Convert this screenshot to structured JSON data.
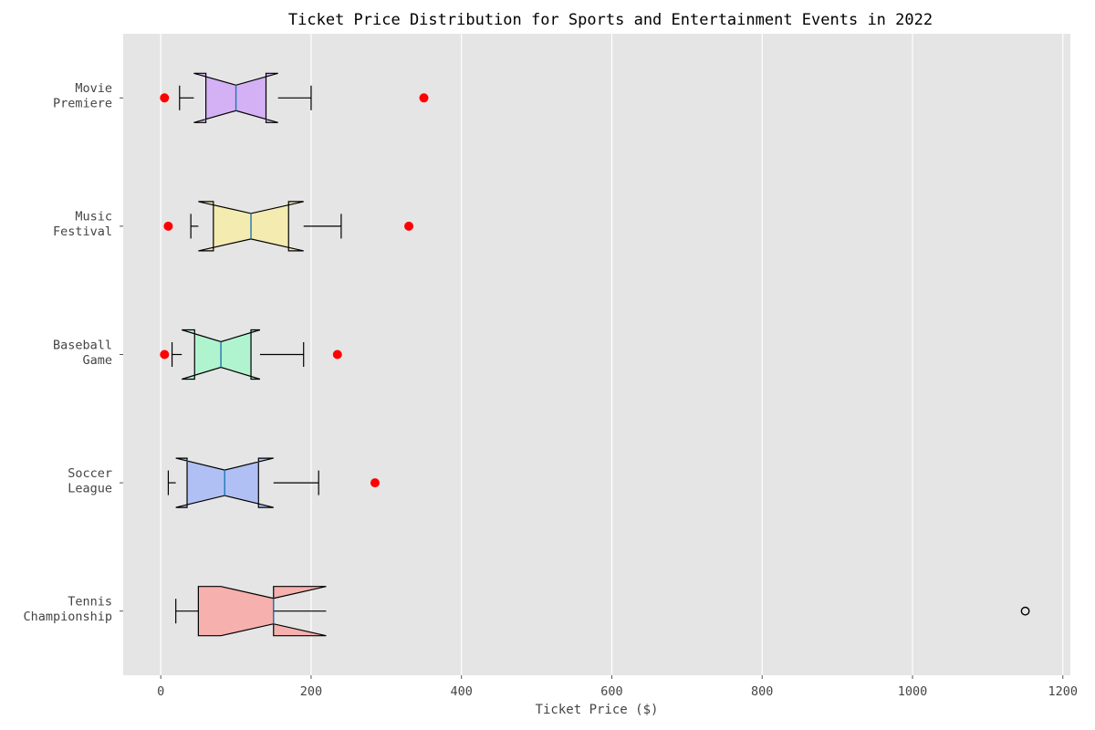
{
  "chart_data": {
    "type": "box",
    "orientation": "horizontal",
    "notched": true,
    "title": "Ticket Price Distribution for Sports and Entertainment Events in 2022",
    "xlabel": "Ticket Price ($)",
    "ylabel": "",
    "xlim": [
      -50,
      1210
    ],
    "xticks": [
      0,
      200,
      400,
      600,
      800,
      1000,
      1200
    ],
    "grid": true,
    "background": "#e5e5e5",
    "grid_color": "#ffffff",
    "median_color": "#1f77b4",
    "outlier_color": "#ff0000",
    "flier_color": "#000000",
    "categories": [
      "Tennis\nChampionship",
      "Soccer\nLeague",
      "Baseball\nGame",
      "Music\nFestival",
      "Movie\nPremiere"
    ],
    "series": [
      {
        "category": "Tennis\nChampionship",
        "min": 20,
        "q1": 50,
        "median": 150,
        "q3": 150,
        "max": 150,
        "notch_low": 80,
        "notch_high": 220,
        "color": "#f6b0ae",
        "outliers": [],
        "fliers": [
          1150
        ]
      },
      {
        "category": "Soccer\nLeague",
        "min": 10,
        "q1": 35,
        "median": 85,
        "q3": 130,
        "max": 210,
        "notch_low": 20,
        "notch_high": 150,
        "color": "#b0c0f4",
        "outliers": [
          285
        ],
        "fliers": []
      },
      {
        "category": "Baseball\nGame",
        "min": 15,
        "q1": 45,
        "median": 80,
        "q3": 120,
        "max": 190,
        "notch_low": 28,
        "notch_high": 132,
        "color": "#b0f4cf",
        "outliers": [
          5,
          235
        ],
        "fliers": []
      },
      {
        "category": "Music\nFestival",
        "min": 40,
        "q1": 70,
        "median": 120,
        "q3": 170,
        "max": 240,
        "notch_low": 50,
        "notch_high": 190,
        "color": "#f4ebb0",
        "outliers": [
          10,
          330
        ],
        "fliers": []
      },
      {
        "category": "Movie\nPremiere",
        "min": 25,
        "q1": 60,
        "median": 100,
        "q3": 140,
        "max": 200,
        "notch_low": 44,
        "notch_high": 156,
        "color": "#d4b0f4",
        "outliers": [
          5,
          350
        ],
        "fliers": []
      }
    ]
  }
}
